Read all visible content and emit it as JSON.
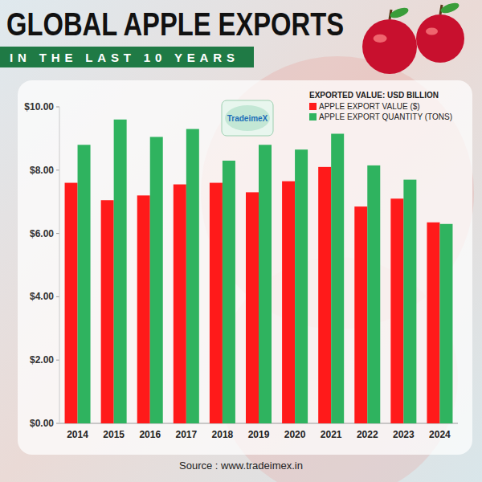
{
  "chart_data": {
    "type": "bar",
    "title": "GLOBAL APPLE EXPORTS",
    "subtitle": "IN THE LAST 10 YEARS",
    "legend_title": "EXPORTED VALUE: USD BILLION",
    "logo": "TradeimeX",
    "source": "Source : www.tradeimex.in",
    "categories": [
      "2014",
      "2015",
      "2016",
      "2017",
      "2018",
      "2019",
      "2020",
      "2021",
      "2022",
      "2023",
      "2024"
    ],
    "series": [
      {
        "name": "APPLE EXPORT VALUE ($)",
        "color": "#ff1a1a",
        "values": [
          7.6,
          7.05,
          7.2,
          7.55,
          7.6,
          7.3,
          7.65,
          8.1,
          6.85,
          7.1,
          6.35
        ]
      },
      {
        "name": "APPLE EXPORT QUANTITY (TONS)",
        "color": "#2fb35f",
        "values": [
          8.8,
          9.6,
          9.05,
          9.3,
          8.3,
          8.8,
          8.65,
          9.15,
          8.15,
          7.7,
          6.3
        ]
      }
    ],
    "ylim": [
      0,
      10
    ],
    "yticks": [
      {
        "value": 0,
        "label": "$0.00"
      },
      {
        "value": 2,
        "label": "$2.00"
      },
      {
        "value": 4,
        "label": "$4.00"
      },
      {
        "value": 6,
        "label": "$6.00"
      },
      {
        "value": 8,
        "label": "$8.00"
      },
      {
        "value": 10,
        "label": "$10.00"
      }
    ],
    "grid": false,
    "legend": "upper right"
  }
}
